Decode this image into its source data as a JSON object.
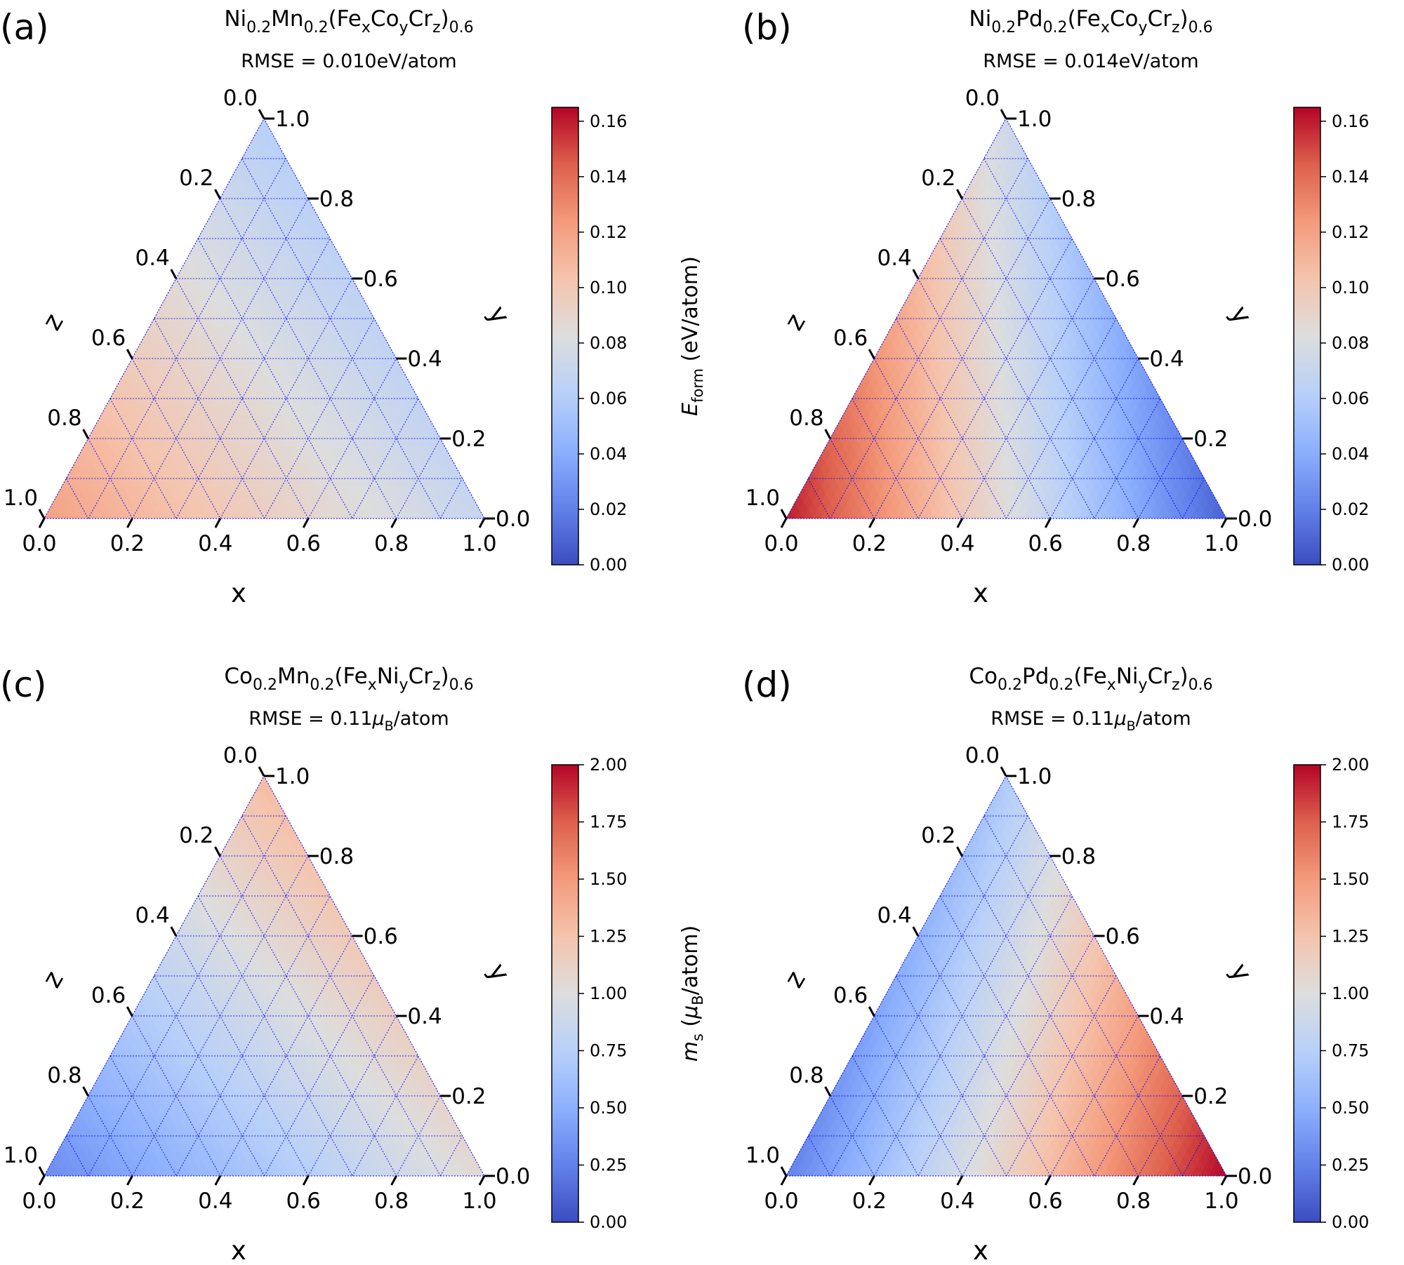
{
  "chart_data": [
    {
      "type": "heatmap",
      "panel_label": "(a)",
      "title": {
        "parts": [
          {
            "t": "Ni"
          },
          {
            "t": "0.2",
            "s": "sub"
          },
          {
            "t": "Mn"
          },
          {
            "t": "0.2",
            "s": "sub"
          },
          {
            "t": "(Fe"
          },
          {
            "t": "x",
            "s": "sub"
          },
          {
            "t": "Co"
          },
          {
            "t": "y",
            "s": "sub"
          },
          {
            "t": "Cr"
          },
          {
            "t": "z",
            "s": "sub"
          },
          {
            "t": ")"
          },
          {
            "t": "0.6",
            "s": "sub"
          }
        ]
      },
      "subtitle": {
        "parts": [
          {
            "t": "RMSE = 0.010eV/atom"
          }
        ]
      },
      "xlabel": "x",
      "ylabel": "y",
      "zlabel": "z",
      "ticks": [
        "0.0",
        "0.2",
        "0.4",
        "0.6",
        "0.8",
        "1.0"
      ],
      "colorbar": {
        "label": {
          "parts": [
            {
              "t": "E",
              "s": "it"
            },
            {
              "t": "form",
              "s": "sub"
            },
            {
              "t": " (eV/atom)"
            }
          ]
        },
        "range": [
          0,
          0.165
        ],
        "ticks": [
          0,
          0.02,
          0.04,
          0.06,
          0.08,
          0.1,
          0.12,
          0.14,
          0.16
        ],
        "tick_labels": [
          "0.00",
          "0.02",
          "0.04",
          "0.06",
          "0.08",
          "0.10",
          "0.12",
          "0.14",
          "0.16"
        ],
        "colormap": "coolwarm"
      },
      "corner_values": {
        "x": 0.07,
        "y": 0.062,
        "z": 0.12
      },
      "grid": true,
      "grid_color": "#0000ff"
    },
    {
      "type": "heatmap",
      "panel_label": "(b)",
      "title": {
        "parts": [
          {
            "t": "Ni"
          },
          {
            "t": "0.2",
            "s": "sub"
          },
          {
            "t": "Pd"
          },
          {
            "t": "0.2",
            "s": "sub"
          },
          {
            "t": "(Fe"
          },
          {
            "t": "x",
            "s": "sub"
          },
          {
            "t": "Co"
          },
          {
            "t": "y",
            "s": "sub"
          },
          {
            "t": "Cr"
          },
          {
            "t": "z",
            "s": "sub"
          },
          {
            "t": ")"
          },
          {
            "t": "0.6",
            "s": "sub"
          }
        ]
      },
      "subtitle": {
        "parts": [
          {
            "t": "RMSE = 0.014eV/atom"
          }
        ]
      },
      "xlabel": "x",
      "ylabel": "y",
      "zlabel": "z",
      "ticks": [
        "0.0",
        "0.2",
        "0.4",
        "0.6",
        "0.8",
        "1.0"
      ],
      "colorbar": {
        "label": {
          "parts": [
            {
              "t": "E",
              "s": "it"
            },
            {
              "t": "form",
              "s": "sub"
            },
            {
              "t": " (eV/atom)"
            }
          ]
        },
        "range": [
          0,
          0.165
        ],
        "ticks": [
          0,
          0.02,
          0.04,
          0.06,
          0.08,
          0.1,
          0.12,
          0.14,
          0.16
        ],
        "tick_labels": [
          "0.00",
          "0.02",
          "0.04",
          "0.06",
          "0.08",
          "0.10",
          "0.12",
          "0.14",
          "0.16"
        ],
        "colormap": "coolwarm"
      },
      "corner_values": {
        "x": 0.008,
        "y": 0.075,
        "z": 0.16
      },
      "grid": true,
      "grid_color": "#0000ff"
    },
    {
      "type": "heatmap",
      "panel_label": "(c)",
      "title": {
        "parts": [
          {
            "t": "Co"
          },
          {
            "t": "0.2",
            "s": "sub"
          },
          {
            "t": "Mn"
          },
          {
            "t": "0.2",
            "s": "sub"
          },
          {
            "t": "(Fe"
          },
          {
            "t": "x",
            "s": "sub"
          },
          {
            "t": "Ni"
          },
          {
            "t": "y",
            "s": "sub"
          },
          {
            "t": "Cr"
          },
          {
            "t": "z",
            "s": "sub"
          },
          {
            "t": ")"
          },
          {
            "t": "0.6",
            "s": "sub"
          }
        ]
      },
      "subtitle": {
        "parts": [
          {
            "t": "RMSE = 0.11"
          },
          {
            "t": "μ",
            "s": "it"
          },
          {
            "t": "B",
            "s": "sub"
          },
          {
            "t": "/atom"
          }
        ]
      },
      "xlabel": "x",
      "ylabel": "y",
      "zlabel": "z",
      "ticks": [
        "0.0",
        "0.2",
        "0.4",
        "0.6",
        "0.8",
        "1.0"
      ],
      "colorbar": {
        "label": {
          "parts": [
            {
              "t": "m",
              "s": "it"
            },
            {
              "t": "s",
              "s": "sub"
            },
            {
              "t": " ("
            },
            {
              "t": "μ",
              "s": "it"
            },
            {
              "t": "B",
              "s": "sub"
            },
            {
              "t": "/atom)"
            }
          ]
        },
        "range": [
          0,
          2.0
        ],
        "ticks": [
          0,
          0.25,
          0.5,
          0.75,
          1.0,
          1.25,
          1.5,
          1.75,
          2.0
        ],
        "tick_labels": [
          "0.00",
          "0.25",
          "0.50",
          "0.75",
          "1.00",
          "1.25",
          "1.50",
          "1.75",
          "2.00"
        ],
        "colormap": "coolwarm"
      },
      "corner_values": {
        "x": 1.05,
        "y": 1.3,
        "z": 0.3
      },
      "grid": true,
      "grid_color": "#0000ff"
    },
    {
      "type": "heatmap",
      "panel_label": "(d)",
      "title": {
        "parts": [
          {
            "t": "Co"
          },
          {
            "t": "0.2",
            "s": "sub"
          },
          {
            "t": "Pd"
          },
          {
            "t": "0.2",
            "s": "sub"
          },
          {
            "t": "(Fe"
          },
          {
            "t": "x",
            "s": "sub"
          },
          {
            "t": "Ni"
          },
          {
            "t": "y",
            "s": "sub"
          },
          {
            "t": "Cr"
          },
          {
            "t": "z",
            "s": "sub"
          },
          {
            "t": ")"
          },
          {
            "t": "0.6",
            "s": "sub"
          }
        ]
      },
      "subtitle": {
        "parts": [
          {
            "t": "RMSE = 0.11"
          },
          {
            "t": "μ",
            "s": "it"
          },
          {
            "t": "B",
            "s": "sub"
          },
          {
            "t": "/atom"
          }
        ]
      },
      "xlabel": "x",
      "ylabel": "y",
      "zlabel": "z",
      "ticks": [
        "0.0",
        "0.2",
        "0.4",
        "0.6",
        "0.8",
        "1.0"
      ],
      "colorbar": {
        "label": {
          "parts": [
            {
              "t": "m",
              "s": "it"
            },
            {
              "t": "s",
              "s": "sub"
            },
            {
              "t": " ("
            },
            {
              "t": "μ",
              "s": "it"
            },
            {
              "t": "B",
              "s": "sub"
            },
            {
              "t": "/atom)"
            }
          ]
        },
        "range": [
          0,
          2.0
        ],
        "ticks": [
          0,
          0.25,
          0.5,
          0.75,
          1.0,
          1.25,
          1.5,
          1.75,
          2.0
        ],
        "tick_labels": [
          "0.00",
          "0.25",
          "0.50",
          "0.75",
          "1.00",
          "1.25",
          "1.50",
          "1.75",
          "2.00"
        ],
        "colormap": "coolwarm"
      },
      "corner_values": {
        "x": 2.0,
        "y": 0.7,
        "z": 0.25
      },
      "grid": true,
      "grid_color": "#0000ff"
    }
  ]
}
